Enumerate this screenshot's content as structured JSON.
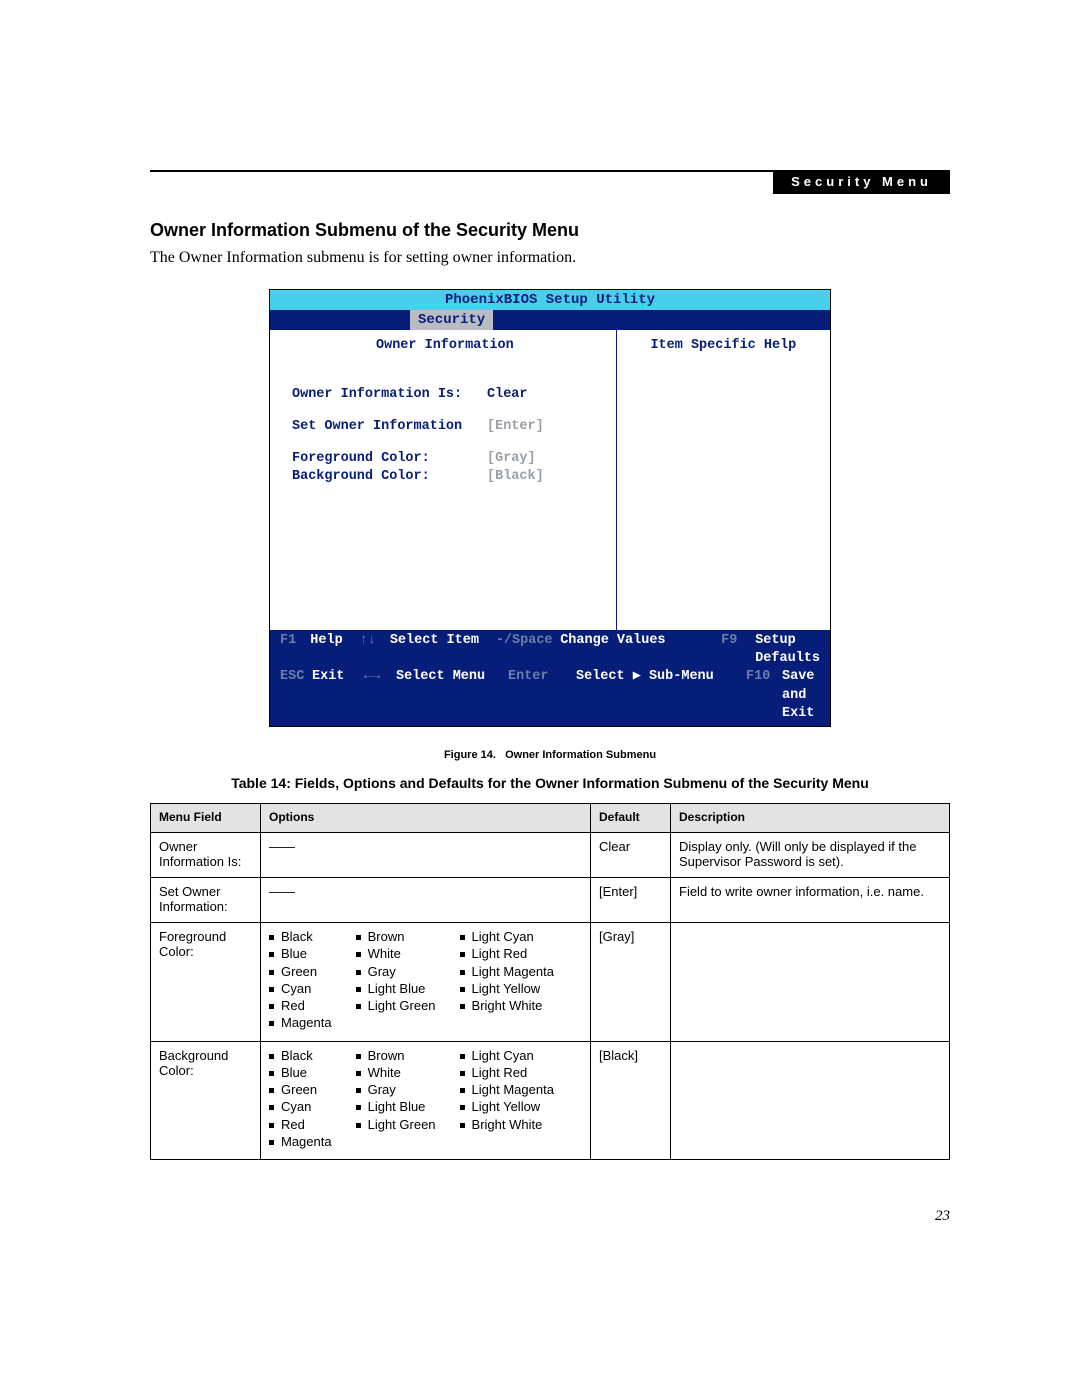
{
  "header": {
    "label": "Security Menu"
  },
  "section": {
    "title": "Owner Information Submenu of the Security Menu",
    "intro": "The Owner Information submenu is for setting owner information."
  },
  "bios": {
    "title": "PhoenixBIOS Setup Utility",
    "tab": "Security",
    "panel_title": "Owner Information",
    "help_title": "Item Specific Help",
    "rows": [
      {
        "label": "Owner Information Is:",
        "value": "Clear",
        "dim": false
      },
      {
        "label": "Set Owner Information",
        "value": "[Enter]",
        "dim": true
      },
      {
        "label": "Foreground Color:",
        "value": "[Gray]",
        "dim": true
      },
      {
        "label": "Background Color:",
        "value": "[Black]",
        "dim": true
      }
    ],
    "footer": {
      "r1": {
        "k1": "F1",
        "l1": "Help",
        "k2": "↑↓",
        "l2": "Select Item",
        "k3": "-/Space",
        "l3": "Change Values",
        "k4": "F9",
        "l4": "Setup Defaults"
      },
      "r2": {
        "k1": "ESC",
        "l1": "Exit",
        "k2": "←→",
        "l2": "Select Menu",
        "k3": "Enter",
        "l3": "Select ▶ Sub-Menu",
        "k4": "F10",
        "l4": "Save and Exit"
      }
    },
    "colors": {
      "title_bg": "#46d0ec",
      "title_fg": "#061e7a",
      "bar_bg": "#061e7a",
      "tab_bg": "#b9bcc2",
      "dim_text": "#9a9fa6"
    }
  },
  "figure": {
    "label": "Figure 14.",
    "caption": "Owner Information Submenu"
  },
  "table": {
    "title": "Table 14: Fields, Options and Defaults for the Owner Information Submenu of the Security Menu",
    "headers": [
      "Menu Field",
      "Options",
      "Default",
      "Description"
    ],
    "rows": [
      {
        "field": "Owner Information Is:",
        "options_dash": true,
        "default": "Clear",
        "description": "Display only. (Will only be displayed if the Supervisor Password is set)."
      },
      {
        "field": "Set Owner Information:",
        "options_dash": true,
        "default": "[Enter]",
        "description": "Field to write owner information, i.e. name."
      },
      {
        "field": "Foreground Color:",
        "options": [
          [
            "Black",
            "Blue",
            "Green",
            "Cyan",
            "Red",
            "Magenta"
          ],
          [
            "Brown",
            "White",
            "Gray",
            "Light Blue",
            "Light Green"
          ],
          [
            "Light Cyan",
            "Light Red",
            "Light Magenta",
            "Light Yellow",
            "Bright White"
          ]
        ],
        "default": "[Gray]",
        "description": ""
      },
      {
        "field": "Background Color:",
        "options": [
          [
            "Black",
            "Blue",
            "Green",
            "Cyan",
            "Red",
            "Magenta"
          ],
          [
            "Brown",
            "White",
            "Gray",
            "Light Blue",
            "Light Green"
          ],
          [
            "Light Cyan",
            "Light Red",
            "Light Magenta",
            "Light Yellow",
            "Bright White"
          ]
        ],
        "default": "[Black]",
        "description": ""
      }
    ]
  },
  "page_number": "23"
}
